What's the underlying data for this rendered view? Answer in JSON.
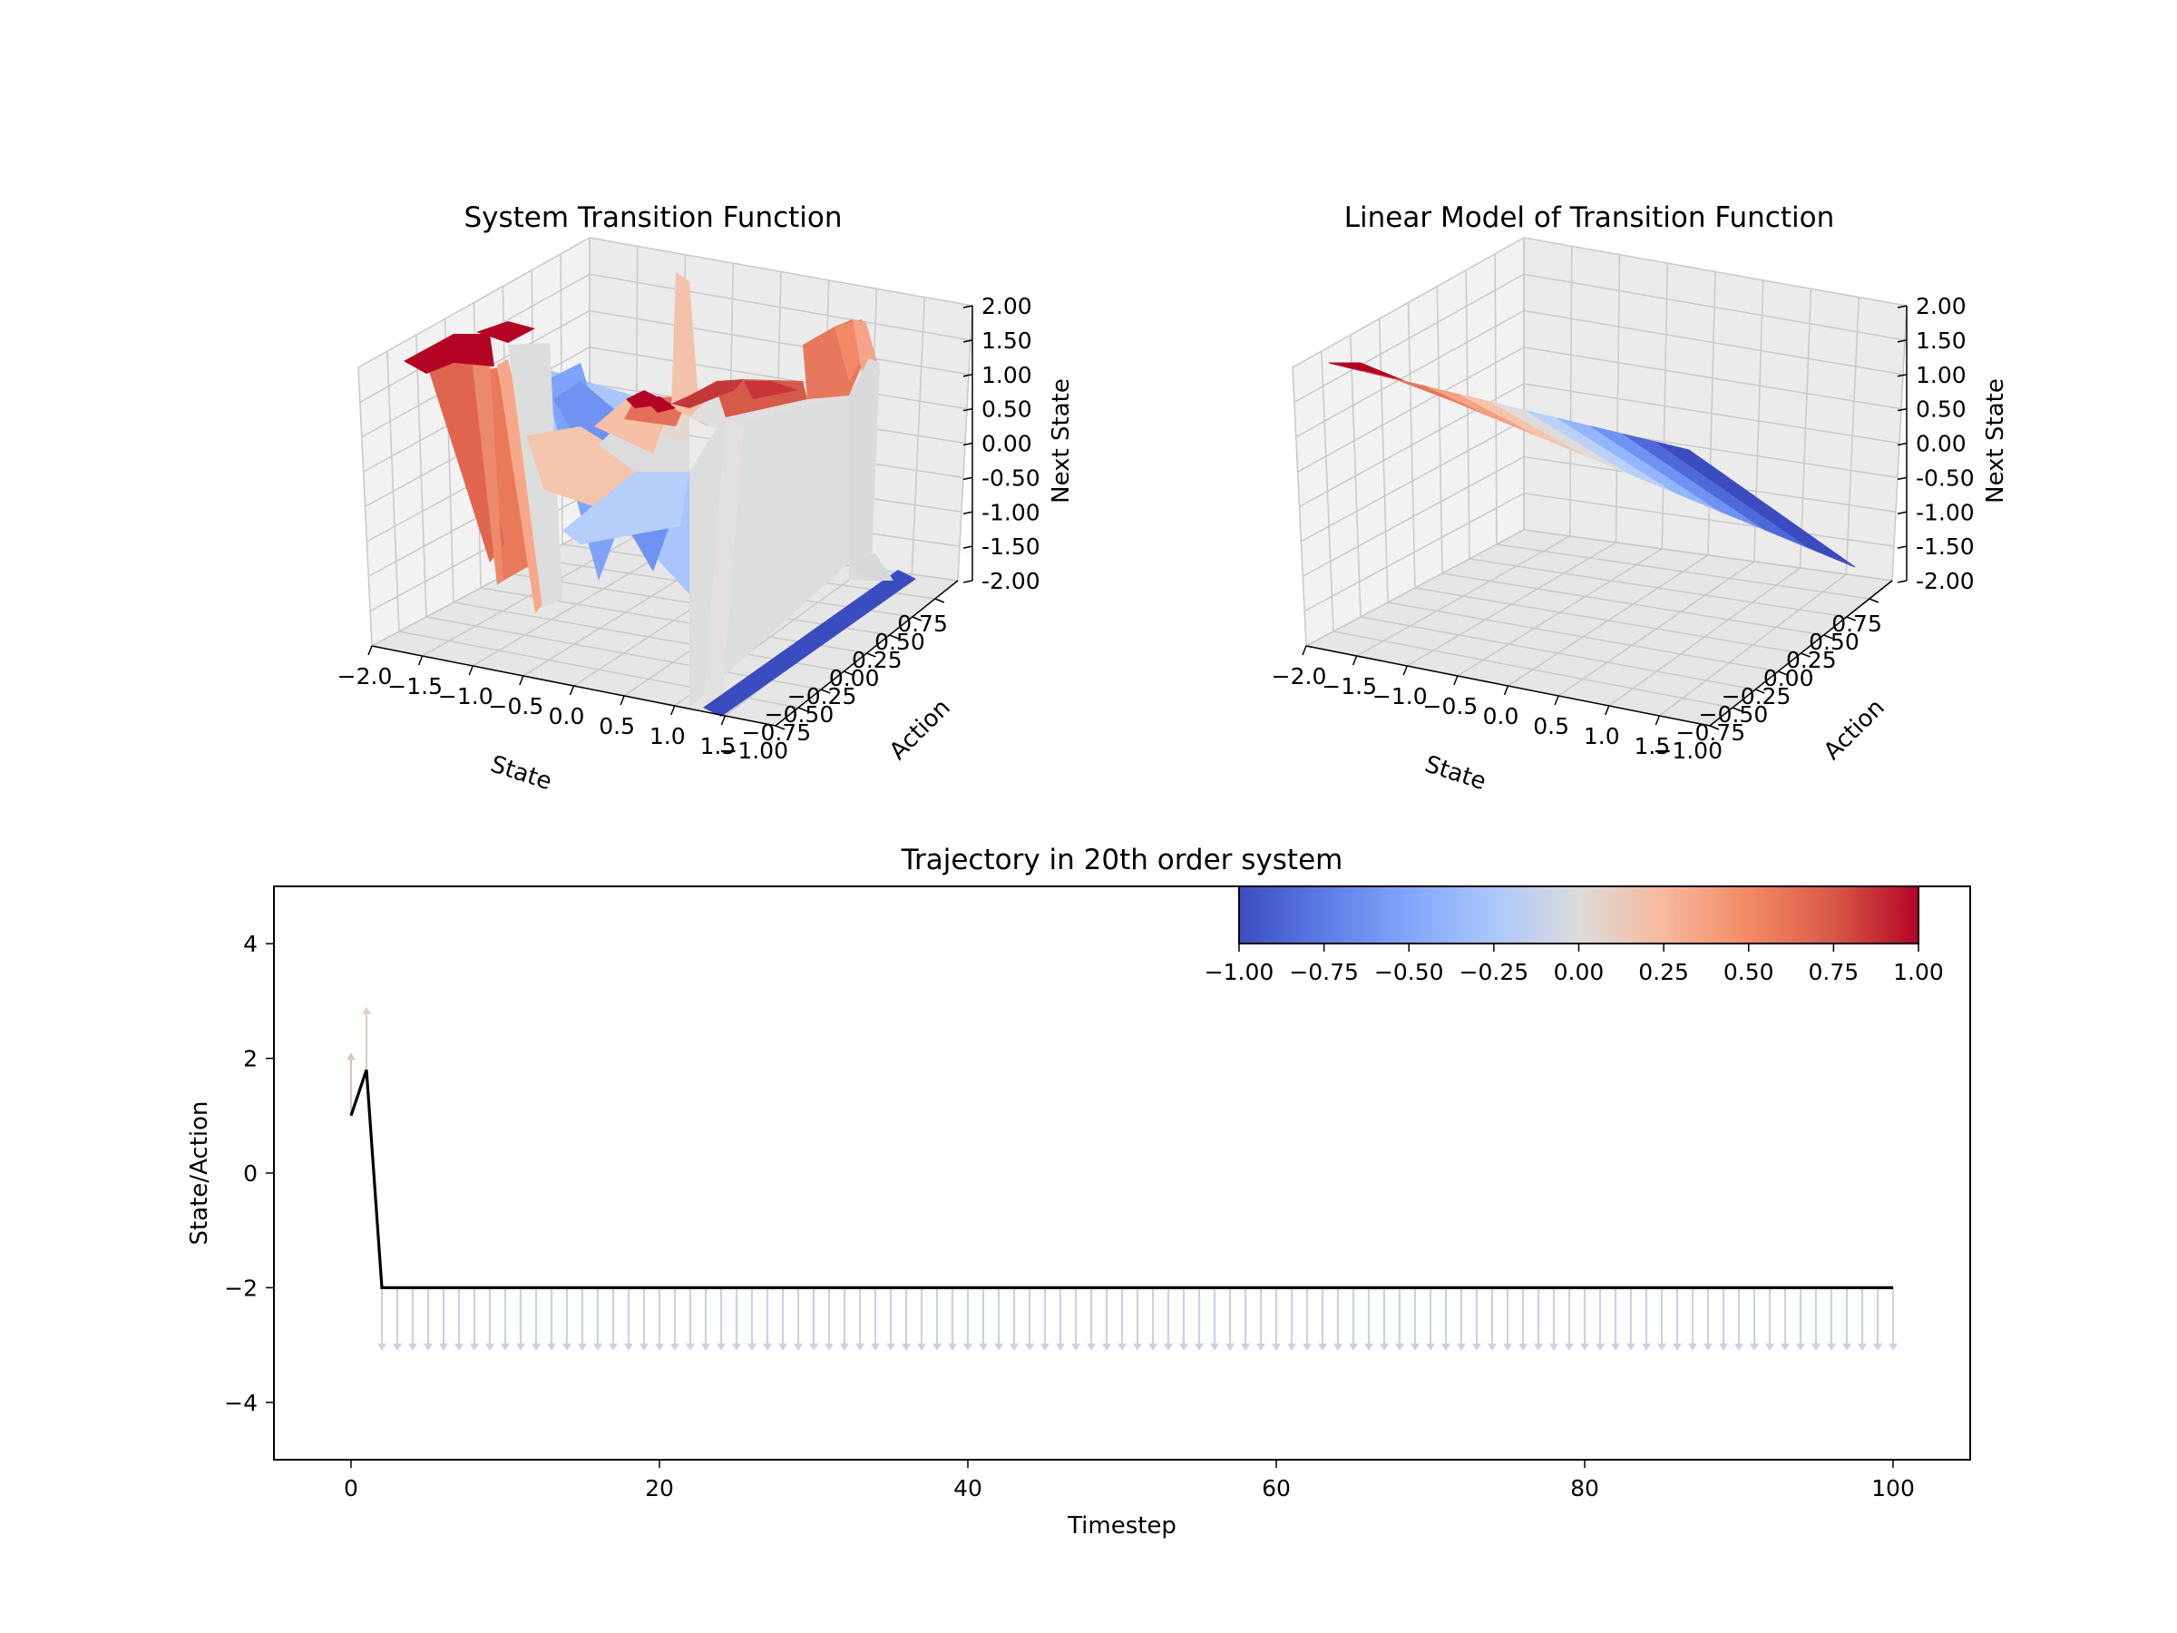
{
  "figure": {
    "background": "#ffffff",
    "colormap": "coolwarm"
  },
  "chart_data": [
    {
      "type": "surface3d",
      "title": "System Transition Function",
      "xlabel": "State",
      "ylabel": "Action",
      "zlabel": "Next State",
      "x_ticks": [
        "−2.0",
        "−1.5",
        "−1.0",
        "−0.5",
        "0.0",
        "0.5",
        "1.0",
        "1.5"
      ],
      "y_ticks": [
        "−1.00",
        "−0.75",
        "−0.50",
        "−0.25",
        "0.00",
        "0.25",
        "0.50",
        "0.75"
      ],
      "z_ticks": [
        "-2.00",
        "-1.50",
        "-1.00",
        "-0.50",
        "0.00",
        "0.50",
        "1.00",
        "1.50",
        "2.00"
      ],
      "xlim": [
        -2,
        2
      ],
      "ylim": [
        -1,
        1
      ],
      "zlim": [
        -2,
        2
      ],
      "grid": true
    },
    {
      "type": "surface3d",
      "title": "Linear Model of Transition Function",
      "xlabel": "State",
      "ylabel": "Action",
      "zlabel": "Next State",
      "x_ticks": [
        "−2.0",
        "−1.5",
        "−1.0",
        "−0.5",
        "0.0",
        "0.5",
        "1.0",
        "1.5"
      ],
      "y_ticks": [
        "−1.00",
        "−0.75",
        "−0.50",
        "−0.25",
        "0.00",
        "0.25",
        "0.50",
        "0.75"
      ],
      "z_ticks": [
        "-2.00",
        "-1.50",
        "-1.00",
        "-0.50",
        "0.00",
        "0.50",
        "1.00",
        "1.50",
        "2.00"
      ],
      "xlim": [
        -2,
        2
      ],
      "ylim": [
        -1,
        1
      ],
      "zlim": [
        -2,
        2
      ],
      "grid": true
    },
    {
      "type": "line",
      "title": "Trajectory in 20th order system",
      "xlabel": "Timestep",
      "ylabel": "State/Action",
      "xlim": [
        -5,
        105
      ],
      "ylim": [
        -5,
        5
      ],
      "x_ticks": [
        0,
        20,
        40,
        60,
        80,
        100
      ],
      "y_ticks": [
        4,
        2,
        0,
        -2,
        -4
      ],
      "y_tick_labels": [
        "4",
        "2",
        "0",
        "−2",
        "−4"
      ],
      "series": [
        {
          "values_x": [
            0,
            1,
            2,
            100
          ],
          "values_y": [
            1.0,
            1.8,
            -2.0,
            -2.0
          ],
          "color": "#000000"
        }
      ],
      "action_arrows": {
        "from_t": 0,
        "to_t": 100,
        "step": 1,
        "first": [
          {
            "t": 0,
            "y0": 1.0,
            "y1": 2.1,
            "color": "#d9c8bd"
          },
          {
            "t": 1,
            "y0": 1.8,
            "y1": 2.9,
            "color": "#e0cfc4"
          }
        ],
        "rest": {
          "y0": -2.0,
          "y1": -3.1,
          "color": "#c7d3e6"
        }
      },
      "colorbar": {
        "min": -1.0,
        "max": 1.0,
        "tick_labels": [
          "−1.00",
          "−0.75",
          "−0.50",
          "−0.25",
          "0.00",
          "0.25",
          "0.50",
          "0.75",
          "1.00"
        ],
        "placement": "upper-right"
      }
    }
  ]
}
